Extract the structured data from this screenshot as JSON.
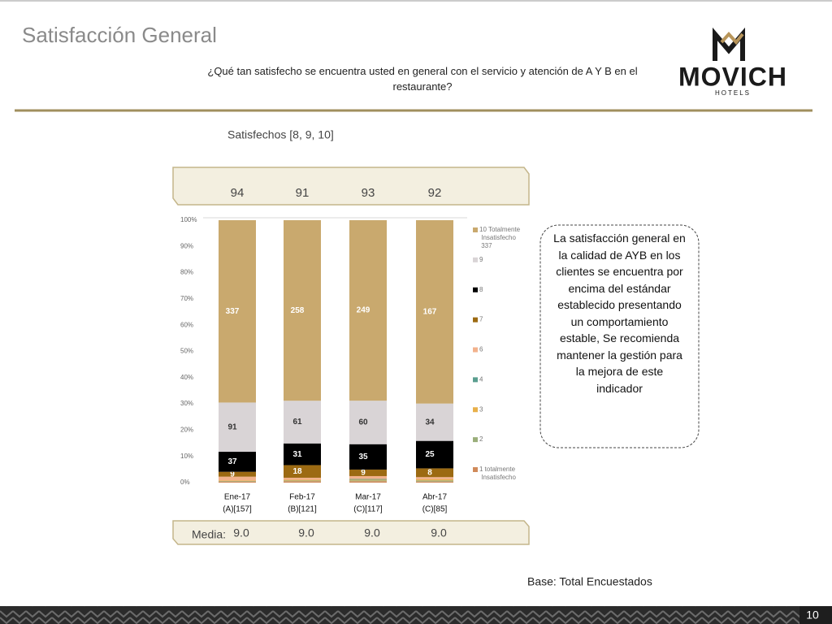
{
  "header": {
    "title": "Satisfacción General",
    "question": "¿Qué tan satisfecho se encuentra usted en general con el servicio y atención de A Y B en el restaurante?",
    "logo": "MOVICH",
    "logo_sub": "HOTELS"
  },
  "chart_data": {
    "type": "bar",
    "stack": "percent",
    "subtitle": "Satisfechos [8, 9, 10]",
    "satisfied": [
      94,
      91,
      93,
      92
    ],
    "categories": [
      "Ene-17",
      "Feb-17",
      "Mar-17",
      "Abr-17"
    ],
    "bases": [
      "(A)[157]",
      "(B)[121]",
      "(C)[117]",
      "(C)[85]"
    ],
    "mean_label": "Media:",
    "means": [
      {
        "value": 9,
        "label": "9.0"
      },
      {
        "value": 9,
        "label": "9.0"
      },
      {
        "value": 9,
        "label": "9.0"
      },
      {
        "value": 9,
        "label": "9.0"
      }
    ],
    "ylim": [
      0,
      100
    ],
    "yticks": [
      {
        "value": 0,
        "label": "0%"
      },
      {
        "value": 10,
        "label": "10%"
      },
      {
        "value": 20,
        "label": "20%"
      },
      {
        "value": 30,
        "label": "30%"
      },
      {
        "value": 40,
        "label": "40%"
      },
      {
        "value": 50,
        "label": "50%"
      },
      {
        "value": 60,
        "label": "60%"
      },
      {
        "value": 70,
        "label": "70%"
      },
      {
        "value": 80,
        "label": "80%"
      },
      {
        "value": 90,
        "label": "90%"
      },
      {
        "value": 100,
        "label": "100%"
      }
    ],
    "series": [
      {
        "name": "1 totalmente Insatisfecho",
        "color": "#d08a5a",
        "values": [
          2,
          2,
          2,
          1
        ]
      },
      {
        "name": "2",
        "color": "#9aae7a",
        "values": [
          1,
          1,
          1,
          1
        ]
      },
      {
        "name": "3",
        "color": "#e8b04a",
        "values": [
          1,
          1,
          1,
          1
        ]
      },
      {
        "name": "4",
        "color": "#5a9e8f",
        "values": [
          0,
          0,
          1,
          0
        ]
      },
      {
        "name": "6",
        "color": "#f2b28c",
        "values": [
          7,
          3,
          4,
          2
        ]
      },
      {
        "name": "7",
        "color": "#9c6a12",
        "values": [
          9,
          18,
          9,
          8
        ]
      },
      {
        "name": "8",
        "color": "#000000",
        "values": [
          37,
          31,
          35,
          25
        ]
      },
      {
        "name": "9",
        "color": "#d9d4d6",
        "values": [
          91,
          61,
          60,
          34
        ]
      },
      {
        "name": "10 Totalmente Insatisfecho 337",
        "color": "#c9a96e",
        "values": [
          337,
          258,
          249,
          167
        ]
      }
    ]
  },
  "callout": "La satisfacción general en la calidad de AYB en los clientes se encuentra por encima del estándar establecido presentando un comportamiento estable, Se recomienda mantener la gestión para la mejora de este indicador",
  "footer": {
    "base": "Base: Total Encuestados",
    "page": "10"
  }
}
